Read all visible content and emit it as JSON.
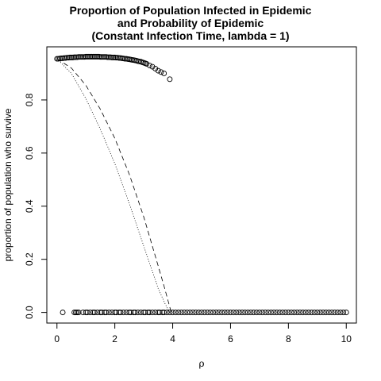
{
  "chart_data": {
    "type": "scatter",
    "title_lines": [
      "Proportion of Population Infected in Epidemic",
      "and Probability of Epidemic",
      "(Constant Infection Time, lambda = 1)"
    ],
    "xlabel": "ρ",
    "ylabel": "proportion of population who survive",
    "xlim": [
      -0.35,
      10.35
    ],
    "ylim": [
      -0.04,
      1.0
    ],
    "x_ticks": [
      0,
      2,
      4,
      6,
      8,
      10
    ],
    "x_tick_labels": [
      "0",
      "2",
      "4",
      "6",
      "8",
      "10"
    ],
    "y_ticks": [
      0.0,
      0.2,
      0.4,
      0.6,
      0.8
    ],
    "y_tick_labels": [
      "0.0",
      "0.2",
      "0.4",
      "0.6",
      "0.8"
    ],
    "grid": false,
    "series": [
      {
        "style": "open-circles",
        "x": [
          0.0,
          0.05,
          0.1,
          0.15,
          0.2,
          0.25,
          0.3,
          0.35,
          0.4,
          0.45,
          0.5,
          0.55,
          0.6,
          0.65,
          0.7,
          0.75,
          0.8,
          0.85,
          0.9,
          0.95,
          1.0,
          1.05,
          1.1,
          1.15,
          1.2,
          1.25,
          1.3,
          1.35,
          1.4,
          1.45,
          1.5,
          1.55,
          1.6,
          1.65,
          1.7,
          1.75,
          1.8,
          1.85,
          1.9,
          1.95,
          2.0,
          2.05,
          2.1,
          2.15,
          2.2,
          2.25,
          2.3,
          2.35,
          2.4,
          2.45,
          2.5,
          2.55,
          2.6,
          2.65,
          2.7,
          2.75,
          2.8,
          2.85,
          2.9,
          2.95,
          3.0,
          3.05,
          3.1,
          3.2,
          3.3,
          3.4,
          3.5,
          3.6,
          3.7,
          3.9
        ],
        "y": [
          0.955,
          0.955,
          0.956,
          0.957,
          0.957,
          0.958,
          0.958,
          0.959,
          0.959,
          0.96,
          0.96,
          0.96,
          0.961,
          0.961,
          0.961,
          0.962,
          0.962,
          0.962,
          0.962,
          0.962,
          0.963,
          0.963,
          0.963,
          0.963,
          0.963,
          0.963,
          0.963,
          0.963,
          0.963,
          0.963,
          0.962,
          0.962,
          0.962,
          0.962,
          0.962,
          0.961,
          0.961,
          0.961,
          0.96,
          0.96,
          0.96,
          0.959,
          0.959,
          0.958,
          0.958,
          0.957,
          0.956,
          0.955,
          0.955,
          0.954,
          0.953,
          0.952,
          0.951,
          0.95,
          0.949,
          0.948,
          0.946,
          0.945,
          0.944,
          0.942,
          0.94,
          0.938,
          0.936,
          0.93,
          0.925,
          0.918,
          0.91,
          0.905,
          0.9,
          0.878
        ]
      },
      {
        "style": "open-circles",
        "x": [
          0.2,
          0.6,
          0.65,
          0.7,
          0.75,
          0.9,
          1.0,
          1.05,
          1.15,
          1.25,
          1.3,
          1.4,
          1.5,
          1.55,
          1.65,
          1.7,
          1.8,
          1.9,
          2.0,
          2.05,
          2.15,
          2.2,
          2.3,
          2.4,
          2.5,
          2.55,
          2.65,
          2.7,
          2.8,
          2.9,
          3.0,
          3.05,
          3.15,
          3.2,
          3.3,
          3.4,
          3.5,
          3.55,
          3.65,
          3.7,
          3.8,
          3.9,
          4.0,
          4.1,
          4.2,
          4.3,
          4.4,
          4.5,
          4.6,
          4.7,
          4.8,
          4.9,
          5.0,
          5.1,
          5.2,
          5.3,
          5.4,
          5.5,
          5.6,
          5.7,
          5.8,
          5.9,
          6.0,
          6.1,
          6.2,
          6.3,
          6.4,
          6.5,
          6.6,
          6.7,
          6.8,
          6.9,
          7.0,
          7.1,
          7.2,
          7.3,
          7.4,
          7.5,
          7.6,
          7.7,
          7.8,
          7.9,
          8.0,
          8.1,
          8.2,
          8.3,
          8.4,
          8.5,
          8.6,
          8.7,
          8.8,
          8.9,
          9.0,
          9.1,
          9.2,
          9.3,
          9.4,
          9.5,
          9.6,
          9.7,
          9.8,
          9.9,
          10.0
        ],
        "y": [
          0.0,
          0.0,
          0.0,
          0.0,
          0.0,
          0.0,
          0.0,
          0.0,
          0.0,
          0.0,
          0.0,
          0.0,
          0.0,
          0.0,
          0.0,
          0.0,
          0.0,
          0.0,
          0.0,
          0.0,
          0.0,
          0.0,
          0.0,
          0.0,
          0.0,
          0.0,
          0.0,
          0.0,
          0.0,
          0.0,
          0.0,
          0.0,
          0.0,
          0.0,
          0.0,
          0.0,
          0.0,
          0.0,
          0.0,
          0.0,
          0.0,
          0.0,
          0.0,
          0.0,
          0.0,
          0.0,
          0.0,
          0.0,
          0.0,
          0.0,
          0.0,
          0.0,
          0.0,
          0.0,
          0.0,
          0.0,
          0.0,
          0.0,
          0.0,
          0.0,
          0.0,
          0.0,
          0.0,
          0.0,
          0.0,
          0.0,
          0.0,
          0.0,
          0.0,
          0.0,
          0.0,
          0.0,
          0.0,
          0.0,
          0.0,
          0.0,
          0.0,
          0.0,
          0.0,
          0.0,
          0.0,
          0.0,
          0.0,
          0.0,
          0.0,
          0.0,
          0.0,
          0.0,
          0.0,
          0.0,
          0.0,
          0.0,
          0.0,
          0.0,
          0.0,
          0.0,
          0.0,
          0.0,
          0.0,
          0.0,
          0.0,
          0.0,
          0.0
        ]
      },
      {
        "style": "dashed-line",
        "x": [
          0.0,
          0.5,
          1.0,
          1.5,
          2.0,
          2.5,
          3.0,
          3.5,
          3.7,
          3.85,
          3.95
        ],
        "y": [
          0.955,
          0.92,
          0.855,
          0.765,
          0.655,
          0.52,
          0.36,
          0.175,
          0.1,
          0.04,
          0.0
        ]
      },
      {
        "style": "dotted-line",
        "x": [
          0.0,
          0.5,
          1.0,
          1.5,
          2.0,
          2.5,
          3.0,
          3.5,
          3.75,
          3.9
        ],
        "y": [
          0.955,
          0.9,
          0.805,
          0.69,
          0.56,
          0.41,
          0.25,
          0.09,
          0.03,
          0.0
        ]
      }
    ]
  }
}
